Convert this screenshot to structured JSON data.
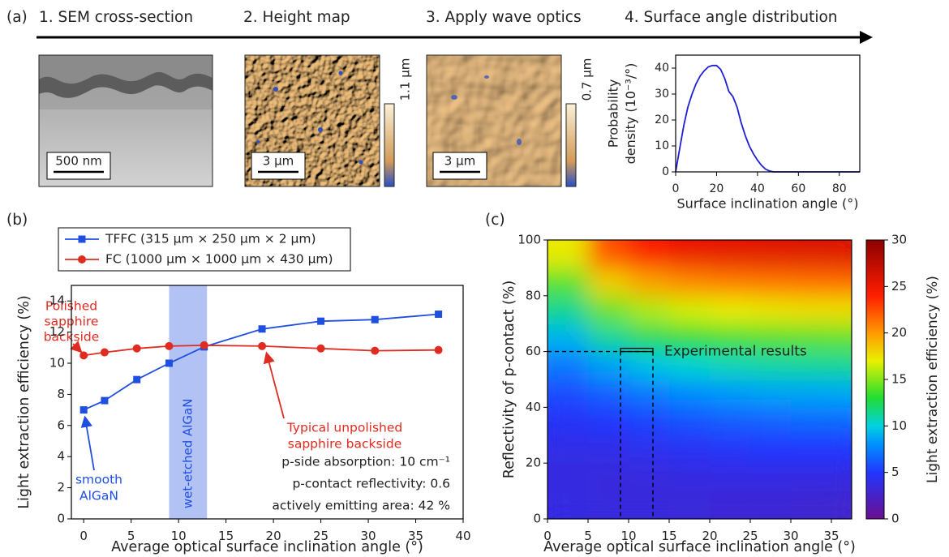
{
  "panel_labels": [
    "(a)",
    "(b)",
    "(c)"
  ],
  "panel_a": {
    "steps": [
      "1. SEM cross-section",
      "2. Height map",
      "3. Apply wave optics",
      "4. Surface angle distribution"
    ],
    "sem": {
      "scale_bar": "500 nm"
    },
    "height_map": {
      "colorbar_label": "1.1 µm",
      "scale_bar": "3 µm"
    },
    "wave_optics": {
      "colorbar_label": "0.7 µm",
      "scale_bar": "3 µm"
    }
  },
  "chart_data": [
    {
      "type": "line",
      "color": "#1f1fd6",
      "x": [
        0,
        2,
        4,
        6,
        8,
        10,
        12,
        14,
        16,
        18,
        20,
        22,
        24,
        26,
        28,
        30,
        32,
        34,
        36,
        38,
        40,
        42,
        44,
        46,
        48,
        60,
        70,
        80,
        90
      ],
      "values": [
        0,
        9,
        18,
        25,
        30,
        34,
        37,
        39,
        40.5,
        41,
        41,
        39.5,
        36,
        31,
        29,
        25,
        19,
        14,
        10,
        7,
        4.5,
        2.5,
        1,
        0.3,
        0,
        0,
        0,
        0,
        0
      ],
      "xlim": [
        0,
        90
      ],
      "ylim": [
        0,
        45
      ],
      "xticks": [
        0,
        20,
        40,
        60,
        80
      ],
      "yticks": [
        0,
        10,
        20,
        30,
        40
      ],
      "x_label": "Surface inclination angle (°)",
      "y_label": [
        "Probability",
        "density (10⁻³/°)"
      ]
    },
    {
      "type": "line",
      "x": [
        0,
        2.2,
        5.6,
        9,
        12.7,
        18.8,
        25,
        30.7,
        37.4
      ],
      "series": [
        {
          "name": "TFFC (315 µm × 250 µm × 2 µm)",
          "color": "#1f4fe0",
          "marker": "square",
          "values": [
            7.0,
            7.6,
            8.95,
            10.0,
            11.05,
            12.2,
            12.7,
            12.8,
            13.15
          ]
        },
        {
          "name": "FC (1000 µm × 1000 µm × 430 µm)",
          "color": "#e02b20",
          "marker": "circle",
          "values": [
            10.5,
            10.7,
            10.95,
            11.1,
            11.15,
            11.1,
            10.95,
            10.8,
            10.85
          ]
        }
      ],
      "xlim": [
        -1.3,
        40
      ],
      "ylim": [
        0,
        15
      ],
      "xticks": [
        0,
        5,
        10,
        15,
        20,
        25,
        30,
        35,
        40
      ],
      "yticks": [
        0,
        2,
        4,
        6,
        8,
        10,
        12,
        14
      ],
      "x_label": "Average optical surface inclination angle (°)",
      "y_label": "Light extraction efficiency (%)",
      "legend": "top-outside",
      "shaded_region": {
        "xlim": [
          9,
          13
        ],
        "label": "wet-etched AlGaN",
        "color": "#b3c2f4"
      },
      "annotations": [
        {
          "lines": [
            "Polished",
            "sapphire",
            "backside"
          ],
          "color": "#e02b20"
        },
        {
          "lines": [
            "Typical unpolished",
            "sapphire backside"
          ],
          "color": "#e02b20"
        },
        {
          "lines": [
            "smooth",
            "AlGaN"
          ],
          "color": "#1f4fe0"
        }
      ],
      "notes": [
        "p-side absorption: 10 cm⁻¹",
        "p-contact reflectivity: 0.6",
        "actively emitting area: 42 %"
      ]
    },
    {
      "type": "heatmap",
      "x_edges": [
        0,
        5,
        10,
        15,
        20,
        25,
        30,
        35,
        37.5
      ],
      "y_edges": [
        0,
        10,
        20,
        30,
        40,
        50,
        60,
        70,
        80,
        90,
        100
      ],
      "z": [
        [
          3.7,
          3.5,
          3.4,
          3.3,
          3.2,
          3.1,
          2.9,
          2.8
        ],
        [
          3.6,
          3.4,
          3.5,
          3.6,
          3.7,
          3.7,
          3.7,
          3.6
        ],
        [
          3.9,
          3.9,
          4.2,
          4.5,
          4.7,
          4.9,
          4.9,
          4.9
        ],
        [
          4.6,
          4.9,
          5.4,
          5.9,
          6.2,
          6.4,
          6.6,
          6.6
        ],
        [
          5.7,
          6.4,
          7.2,
          7.8,
          8.2,
          8.5,
          8.6,
          8.7
        ],
        [
          7.2,
          8.5,
          9.5,
          10.2,
          10.7,
          11.0,
          11.2,
          11.3
        ],
        [
          9.1,
          11.2,
          12.4,
          13.1,
          13.6,
          13.9,
          14.1,
          14.2
        ],
        [
          11.4,
          14.4,
          15.8,
          16.6,
          17.1,
          17.4,
          17.6,
          17.6
        ],
        [
          14.1,
          18.1,
          19.8,
          20.6,
          21.0,
          21.2,
          21.4,
          21.5
        ],
        [
          17.2,
          22.4,
          24.3,
          25.1,
          25.4,
          25.6,
          25.7,
          25.7
        ]
      ],
      "xlim": [
        0,
        37.5
      ],
      "ylim": [
        0,
        100
      ],
      "xticks": [
        0,
        5,
        10,
        15,
        20,
        25,
        30,
        35
      ],
      "yticks": [
        0,
        20,
        40,
        60,
        80,
        100
      ],
      "x_label": "Average optical surface inclination angle (°)",
      "y_label": "Reflectivity of p-contact (%)",
      "colorbar": {
        "lim": [
          0,
          30
        ],
        "ticks": [
          0,
          5,
          10,
          15,
          20,
          25,
          30
        ],
        "label": "Light extraction efficiency (%)",
        "stops": [
          {
            "value": 0,
            "color": "#6a0f8e"
          },
          {
            "value": 5,
            "color": "#2236ff"
          },
          {
            "value": 8,
            "color": "#0090ff"
          },
          {
            "value": 10,
            "color": "#00d2e0"
          },
          {
            "value": 13,
            "color": "#22dd33"
          },
          {
            "value": 17,
            "color": "#e8f000"
          },
          {
            "value": 20,
            "color": "#ff9a00"
          },
          {
            "value": 24,
            "color": "#ff1e00"
          },
          {
            "value": 30,
            "color": "#8b0000"
          }
        ]
      },
      "experimental": {
        "x": [
          9,
          13
        ],
        "y": 60,
        "label": "Experimental results"
      }
    }
  ]
}
